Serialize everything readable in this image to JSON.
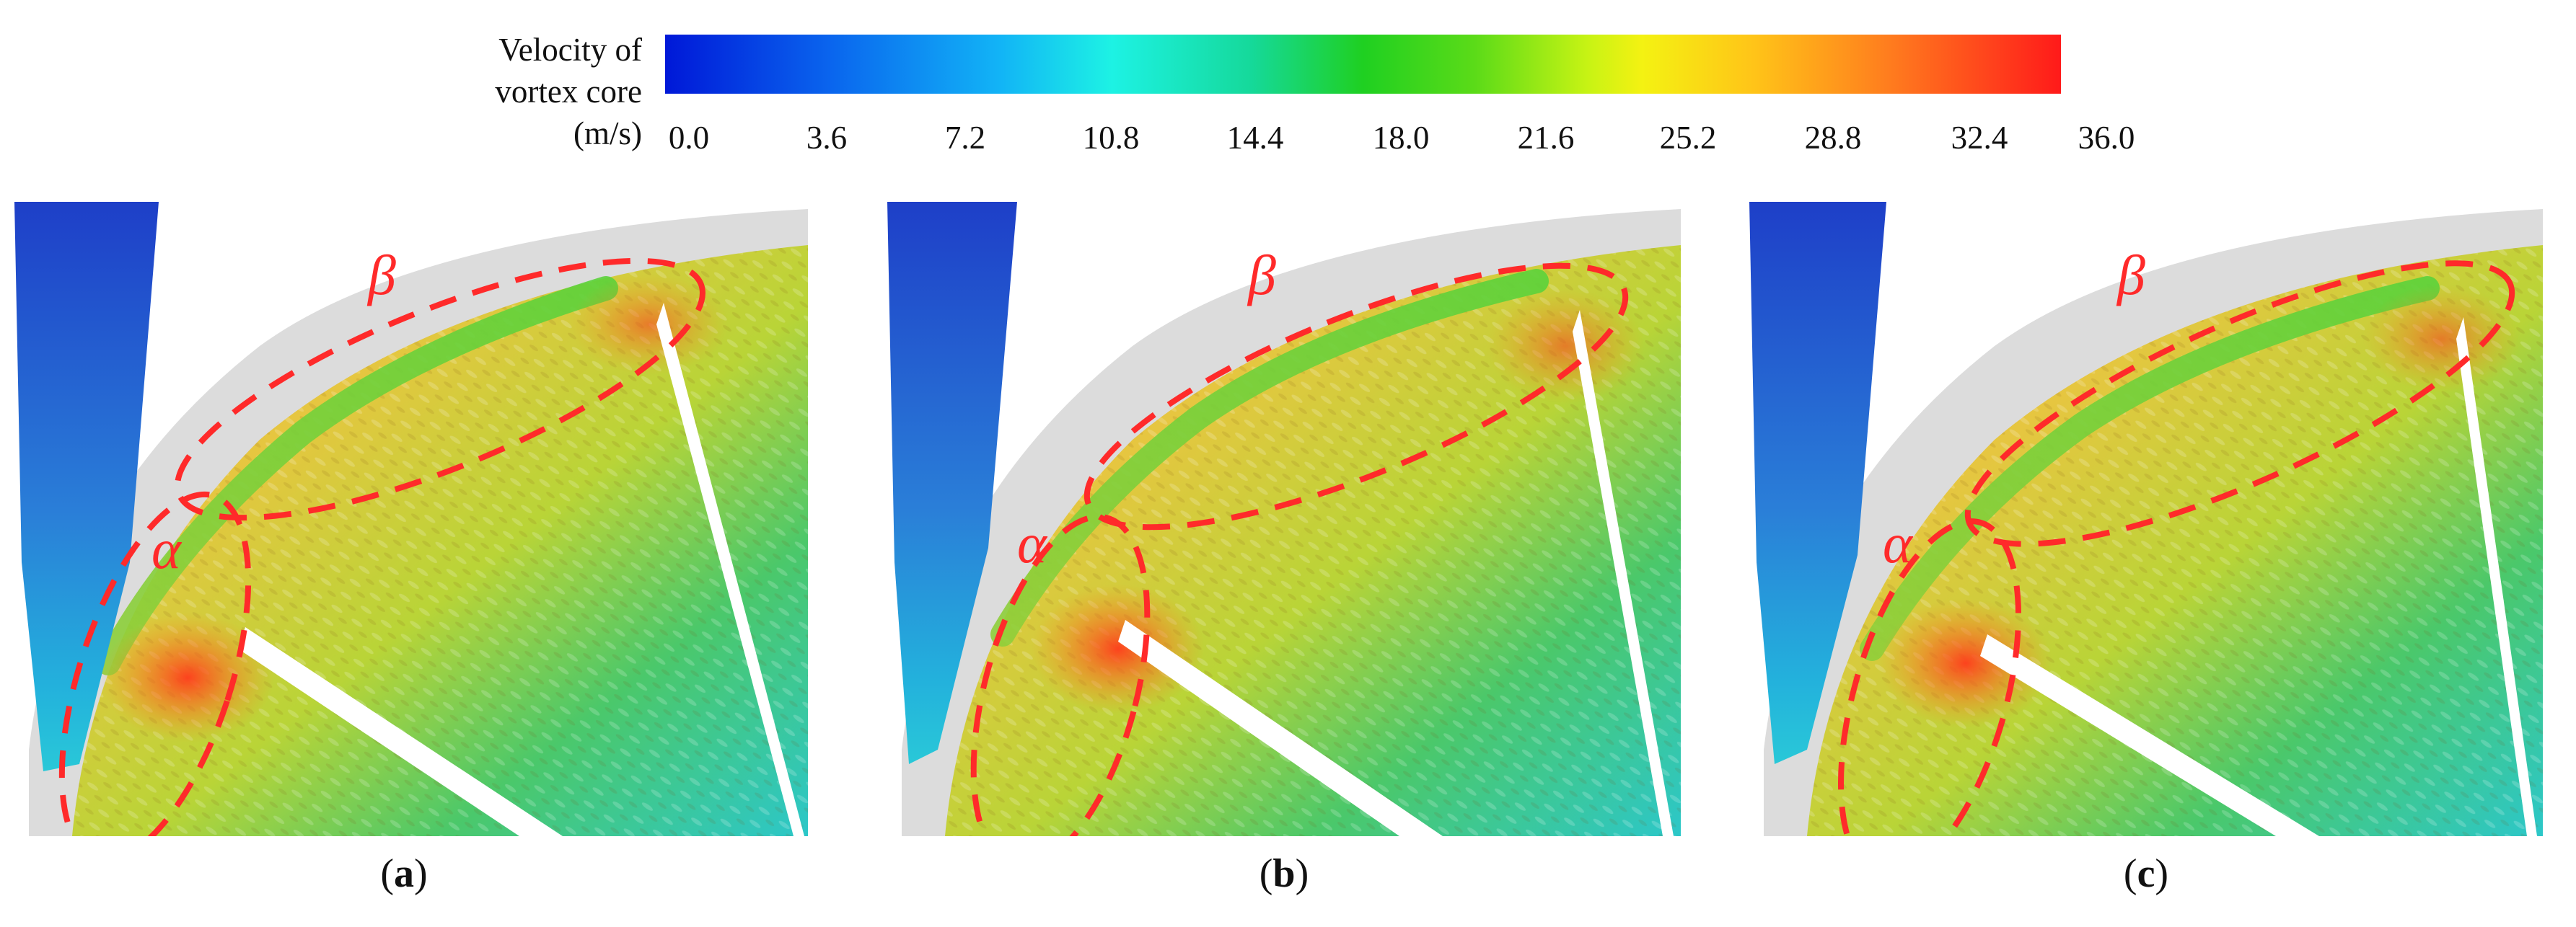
{
  "colorbar": {
    "title_line1": "Velocity of",
    "title_line2": "vortex core",
    "title_line3": "(m/s)",
    "ticks": [
      "0.0",
      "3.6",
      "7.2",
      "10.8",
      "14.4",
      "18.0",
      "21.6",
      "25.2",
      "28.8",
      "32.4",
      "36.0"
    ]
  },
  "panels": [
    {
      "letter": "a",
      "region_alpha": "α",
      "region_beta": "β"
    },
    {
      "letter": "b",
      "region_alpha": "α",
      "region_beta": "β"
    },
    {
      "letter": "c",
      "region_alpha": "α",
      "region_beta": "β"
    }
  ],
  "colors": {
    "annotation": "#ff2a2a",
    "low": "#0a2fd0",
    "high": "#ff2020"
  }
}
